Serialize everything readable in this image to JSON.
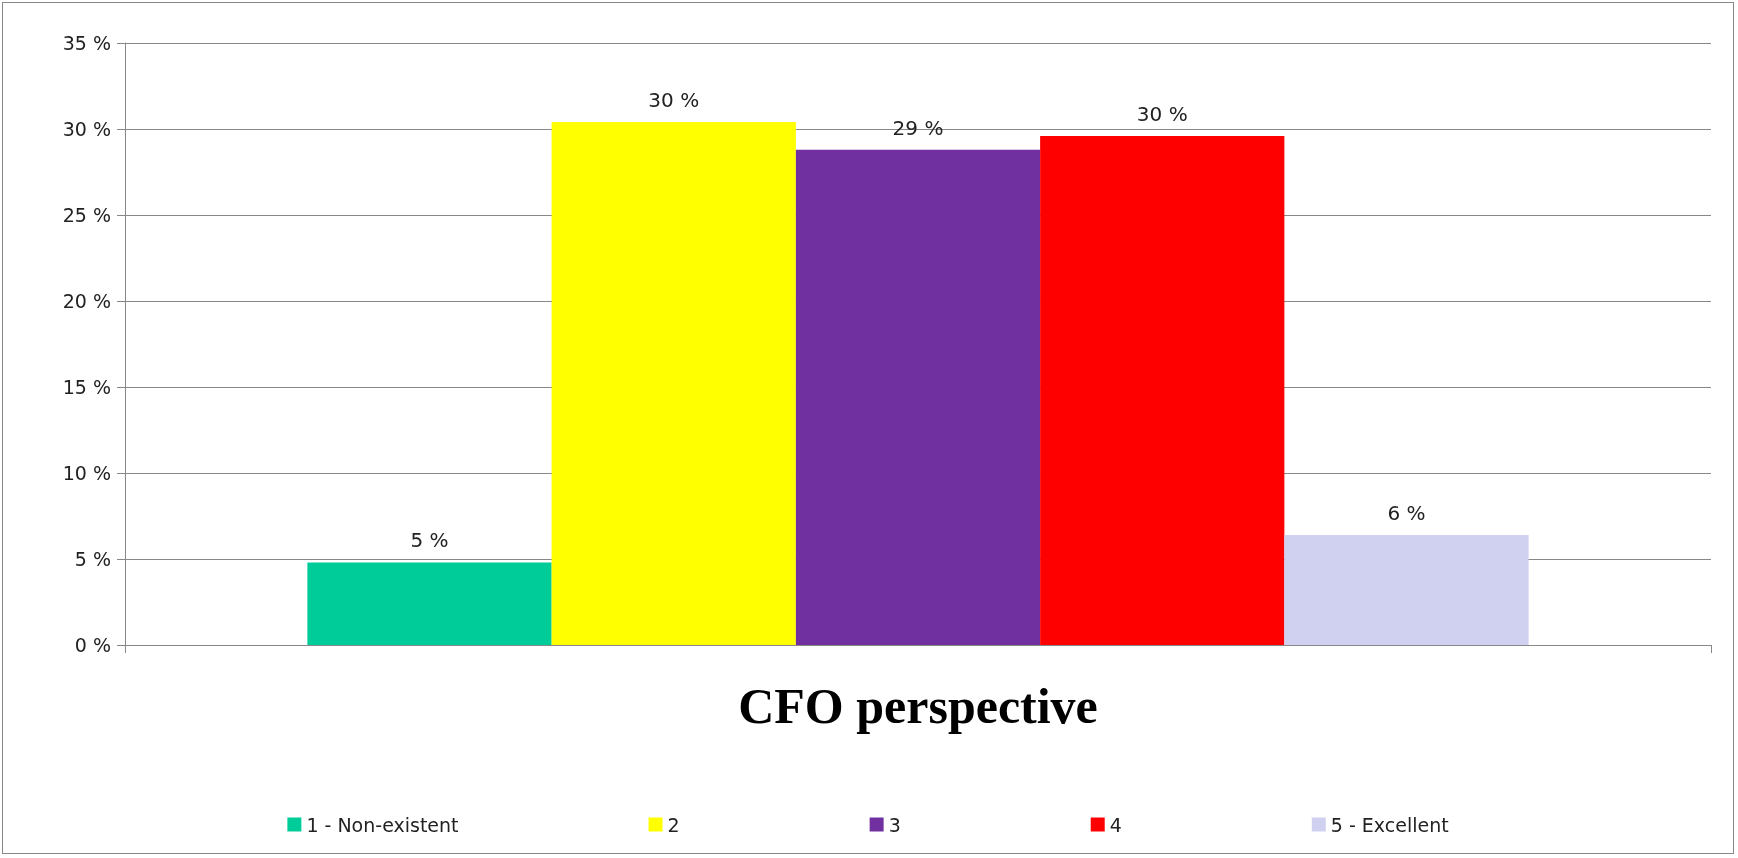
{
  "chart_data": {
    "type": "bar",
    "categories": [
      "CFO perspective"
    ],
    "series": [
      {
        "name": "1 - Non-existent",
        "color": "#00cc99",
        "values": [
          4.8
        ],
        "value_labels": [
          "5 %"
        ]
      },
      {
        "name": "2",
        "color": "#ffff00",
        "values": [
          30.4
        ],
        "value_labels": [
          "30 %"
        ]
      },
      {
        "name": "3",
        "color": "#7030a0",
        "values": [
          28.8
        ],
        "value_labels": [
          "29 %"
        ]
      },
      {
        "name": "4",
        "color": "#ff0000",
        "values": [
          29.6
        ],
        "value_labels": [
          "30 %"
        ]
      },
      {
        "name": "5 - Excellent",
        "color": "#d0d0f0",
        "values": [
          6.4
        ],
        "value_labels": [
          "6 %"
        ]
      }
    ],
    "ylim": [
      0,
      35
    ],
    "yticks": [
      {
        "value": 0,
        "label": "0 %"
      },
      {
        "value": 5,
        "label": "5 %"
      },
      {
        "value": 10,
        "label": "10 %"
      },
      {
        "value": 15,
        "label": "15 %"
      },
      {
        "value": 20,
        "label": "20 %"
      },
      {
        "value": 25,
        "label": "25 %"
      },
      {
        "value": 30,
        "label": "30 %"
      },
      {
        "value": 35,
        "label": "35 %"
      }
    ],
    "grid": "y",
    "legend": "bottom"
  }
}
